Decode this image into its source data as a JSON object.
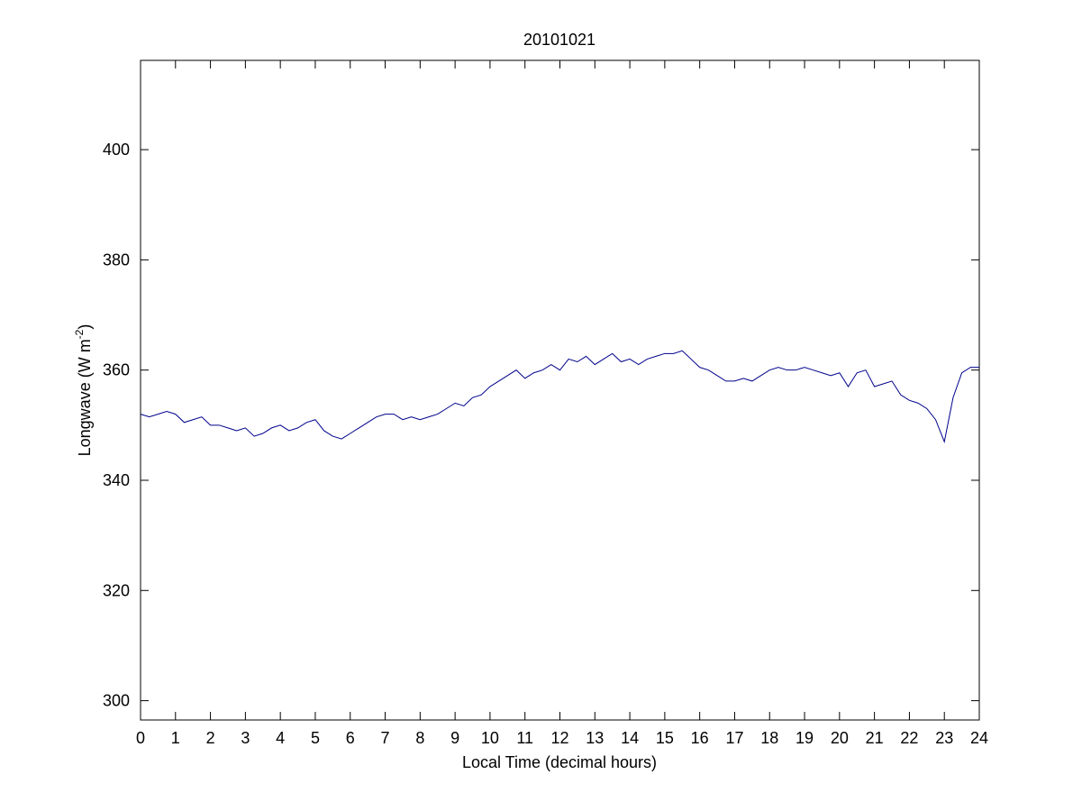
{
  "chart_data": {
    "type": "line",
    "title": "20101021",
    "xlabel": "Local Time (decimal hours)",
    "ylabel": {
      "text": "Longwave (W m",
      "superscript": "-2",
      "suffix": ")"
    },
    "xlim": [
      0,
      24
    ],
    "xticks": [
      0,
      1,
      2,
      3,
      4,
      5,
      6,
      7,
      8,
      9,
      10,
      11,
      12,
      13,
      14,
      15,
      16,
      17,
      18,
      19,
      20,
      21,
      22,
      23,
      24
    ],
    "ylim": [
      296.5,
      416.2
    ],
    "yticks": [
      300,
      320,
      340,
      360,
      380,
      400
    ],
    "grid": false,
    "series": [
      {
        "color": "#00008b",
        "x": [
          0,
          0.25,
          0.5,
          0.75,
          1,
          1.25,
          1.5,
          1.75,
          2,
          2.25,
          2.5,
          2.75,
          3,
          3.25,
          3.5,
          3.75,
          4,
          4.25,
          4.5,
          4.75,
          5,
          5.25,
          5.5,
          5.75,
          6,
          6.25,
          6.5,
          6.75,
          7,
          7.25,
          7.5,
          7.75,
          8,
          8.25,
          8.5,
          8.75,
          9,
          9.25,
          9.5,
          9.75,
          10,
          10.25,
          10.5,
          10.75,
          11,
          11.25,
          11.5,
          11.75,
          12,
          12.25,
          12.5,
          12.75,
          13,
          13.25,
          13.5,
          13.75,
          14,
          14.25,
          14.5,
          14.75,
          15,
          15.25,
          15.5,
          15.75,
          16,
          16.25,
          16.5,
          16.75,
          17,
          17.25,
          17.5,
          17.75,
          18,
          18.25,
          18.5,
          18.75,
          19,
          19.25,
          19.5,
          19.75,
          20,
          20.25,
          20.5,
          20.75,
          21,
          21.25,
          21.5,
          21.75,
          22,
          22.25,
          22.5,
          22.75,
          23,
          23.25,
          23.5,
          23.75,
          24
        ],
        "values": [
          352,
          351.5,
          352,
          352.5,
          352,
          350.5,
          351,
          351.5,
          350,
          350,
          349.5,
          349,
          349.5,
          348,
          348.5,
          349.5,
          350,
          349,
          349.5,
          350.5,
          351,
          349,
          348,
          347.5,
          348.5,
          349.5,
          350.5,
          351.5,
          352,
          352,
          351,
          351.5,
          351,
          351.5,
          352,
          353,
          354,
          353.5,
          355,
          355.5,
          357,
          358,
          359,
          360,
          358.5,
          359.5,
          360,
          361,
          360,
          362,
          361.5,
          362.5,
          361,
          362,
          363,
          361.5,
          362,
          361,
          362,
          362.5,
          363,
          363,
          363.5,
          362,
          360.5,
          360,
          359,
          358,
          358,
          358.5,
          358,
          359,
          360,
          360.5,
          360,
          360,
          360.5,
          360,
          359.5,
          359,
          359.5,
          357,
          359.5,
          360,
          357,
          357.5,
          358,
          355.5,
          354.5,
          354,
          353,
          351,
          347,
          355,
          359.5,
          360.5,
          360.5
        ]
      }
    ]
  }
}
